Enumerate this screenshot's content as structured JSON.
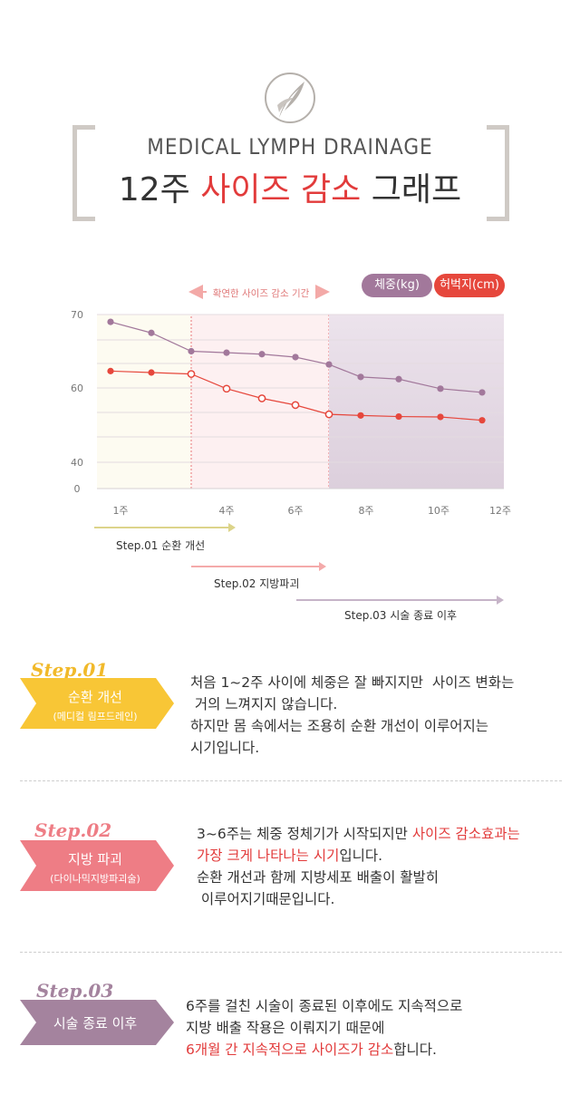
{
  "header": {
    "subtitle": "MEDICAL LYMPH DRAINAGE",
    "title_prefix": "12주 ",
    "title_highlight": "사이즈 감소",
    "title_suffix": " 그래프"
  },
  "colors": {
    "weight": "#a2789b",
    "waist": "#e6473c",
    "step1": "#f8c636",
    "step2": "#ee7d85",
    "step3": "#a4839e",
    "highlight_text": "#e23b3b"
  },
  "chart_data": {
    "type": "line",
    "title": "12주 사이즈 감소 그래프",
    "x": [
      1,
      2,
      3,
      4,
      5,
      6,
      7,
      8,
      9,
      10,
      11
    ],
    "x_tick_labels": [
      "1주",
      "4주",
      "6주",
      "8주",
      "10주",
      "12주"
    ],
    "y_tick_labels": [
      "70",
      "60",
      "40",
      "0"
    ],
    "series": [
      {
        "name": "체중(kg)",
        "values": [
          69,
          67.5,
          65,
          64.8,
          64.6,
          64.2,
          63.2,
          61.5,
          61.2,
          59.8,
          58.8
        ]
      },
      {
        "name": "허벅지(cm)",
        "values": [
          62.3,
          62.1,
          61.9,
          59.8,
          57.2,
          55.4,
          52.9,
          52.6,
          52.3,
          52.2,
          51.3
        ]
      }
    ],
    "highlight_range_label": "확연한 사이즈 감소 기간",
    "legend_position": "top-right",
    "grid": true
  },
  "legend": {
    "weight_label": "체중(kg)",
    "waist_label": "허벅지(cm)"
  },
  "phases": [
    {
      "label": "Step.01 순환 개선"
    },
    {
      "label": "Step.02 지방파괴"
    },
    {
      "label": "Step.03 시술 종료 이후"
    }
  ],
  "steps": [
    {
      "step": "Step.01",
      "badge_main": "순환 개선",
      "badge_sub": "(메디컬 림프드레인)",
      "lines": [
        "처음 1~2주 사이에 체중은 잘 빠지지만  사이즈 변화는",
        " 거의 느껴지지 않습니다.",
        "하지만 몸 속에서는 조용히 순환 개선이 이루어지는",
        "시기입니다."
      ]
    },
    {
      "step": "Step.02",
      "badge_main": "지방 파괴",
      "badge_sub": "(다이나믹지방파괴술)",
      "line1_plain": "3~6주는 체중 정체기가 시작되지만 ",
      "line1_red": "사이즈 감소효과는",
      "line2_red": "가장 크게 나타나는 시기",
      "line2_plain": "입니다.",
      "line3": "순환 개선과 함께 지방세포 배출이 활발히",
      "line4": " 이루어지기때문입니다."
    },
    {
      "step": "Step.03",
      "badge_main": "시술 종료 이후",
      "line1": "6주를 걸친 시술이 종료된 이후에도 지속적으로",
      "line2": "지방 배출 작용은 이뤄지기 때문에",
      "line3_red": "6개월 간 지속적으로 사이즈가 감소",
      "line3_plain": "합니다."
    }
  ]
}
